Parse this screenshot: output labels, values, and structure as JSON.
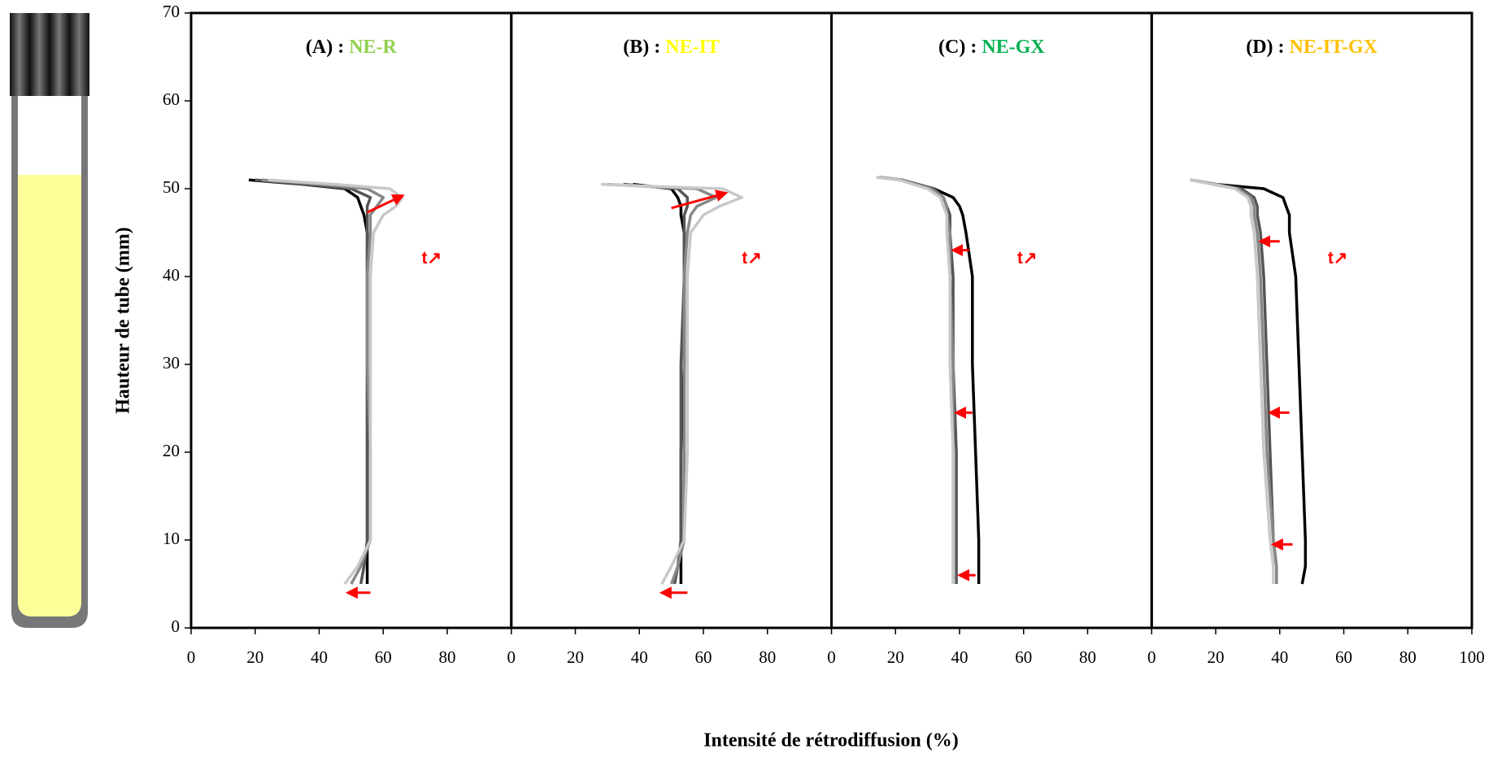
{
  "chart_data": [
    {
      "type": "line",
      "title": "(A) : ",
      "title_name": "NE-R",
      "title_color": "#92d050",
      "annotation": "t↗",
      "ylabel": "Hauteur de tube (mm)",
      "xlabel": "Intensité de rétrodiffusion (%)",
      "xlim": [
        0,
        100
      ],
      "xticks": [
        0,
        20,
        40,
        60,
        80
      ],
      "ylim": [
        0,
        70
      ],
      "yticks": [
        0,
        10,
        20,
        30,
        40,
        50,
        60,
        70
      ],
      "series": [
        {
          "color": "#000000",
          "x": [
            18,
            35,
            48,
            52,
            53,
            54,
            55,
            55,
            55,
            55,
            55,
            55,
            55
          ],
          "values": [
            51,
            50.5,
            50,
            49,
            48,
            47,
            45,
            40,
            30,
            20,
            10,
            7,
            5
          ]
        },
        {
          "color": "#555555",
          "x": [
            20,
            36,
            50,
            56,
            55,
            55,
            55,
            55,
            55,
            55,
            55,
            54,
            53
          ],
          "values": [
            51,
            50.5,
            50,
            49,
            48,
            47,
            45,
            40,
            30,
            20,
            10,
            7,
            5
          ]
        },
        {
          "color": "#888888",
          "x": [
            22,
            40,
            55,
            60,
            58,
            56,
            56,
            55,
            55,
            56,
            56,
            53,
            50
          ],
          "values": [
            51,
            50.5,
            50,
            49,
            48,
            47,
            45,
            40,
            30,
            20,
            10,
            7,
            5
          ]
        },
        {
          "color": "#c8c8c8",
          "x": [
            24,
            45,
            62,
            66,
            64,
            60,
            57,
            56,
            56,
            56,
            56,
            52,
            48
          ],
          "values": [
            51,
            50.5,
            50,
            49,
            48,
            47,
            45,
            40,
            30,
            20,
            10,
            7,
            5
          ]
        }
      ]
    },
    {
      "type": "line",
      "title": "(B) : ",
      "title_name": "NE-IT",
      "title_color": "#ffff00",
      "annotation": "t↗",
      "xlim": [
        0,
        100
      ],
      "xticks": [
        0,
        20,
        40,
        60,
        80
      ],
      "ylim": [
        0,
        70
      ],
      "series": [
        {
          "color": "#000000",
          "x": [
            38,
            45,
            50,
            52,
            53,
            53,
            54,
            54,
            54,
            53,
            53,
            53,
            53
          ],
          "values": [
            50.5,
            50.2,
            50,
            49,
            48,
            47,
            45,
            40,
            30,
            20,
            10,
            7,
            5
          ]
        },
        {
          "color": "#555555",
          "x": [
            35,
            45,
            52,
            55,
            55,
            54,
            54,
            54,
            53,
            53,
            53,
            52,
            51
          ],
          "values": [
            50.5,
            50.2,
            50,
            49,
            48,
            47,
            45,
            40,
            30,
            20,
            10,
            7,
            5
          ]
        },
        {
          "color": "#888888",
          "x": [
            30,
            45,
            58,
            64,
            58,
            56,
            55,
            54,
            54,
            54,
            54,
            52,
            50
          ],
          "values": [
            50.5,
            50.2,
            50,
            49,
            48,
            47,
            45,
            40,
            30,
            20,
            10,
            7,
            5
          ]
        },
        {
          "color": "#c8c8c8",
          "x": [
            28,
            48,
            66,
            72,
            65,
            60,
            56,
            55,
            55,
            55,
            54,
            50,
            47
          ],
          "values": [
            50.5,
            50.2,
            50,
            49,
            48,
            47,
            45,
            40,
            30,
            20,
            10,
            7,
            5
          ]
        }
      ]
    },
    {
      "type": "line",
      "title": "(C) : ",
      "title_name": "NE-GX",
      "title_color": "#00b050",
      "annotation": "t↗",
      "xlim": [
        0,
        100
      ],
      "xticks": [
        0,
        20,
        40,
        60,
        80
      ],
      "ylim": [
        0,
        70
      ],
      "series": [
        {
          "color": "#000000",
          "x": [
            15,
            22,
            32,
            38,
            40,
            41,
            42,
            44,
            44,
            45,
            46,
            46,
            46
          ],
          "values": [
            51.3,
            51,
            50,
            49,
            48,
            47,
            45,
            40,
            30,
            20,
            10,
            7,
            5
          ]
        },
        {
          "color": "#555555",
          "x": [
            15,
            22,
            32,
            35,
            36,
            37,
            37,
            38,
            38,
            39,
            39,
            39,
            39
          ],
          "values": [
            51.3,
            51,
            50,
            49,
            48,
            47,
            45,
            40,
            30,
            20,
            10,
            7,
            5
          ]
        },
        {
          "color": "#888888",
          "x": [
            15,
            22,
            31,
            35,
            36,
            36,
            37,
            37,
            38,
            38,
            38,
            38,
            38
          ],
          "values": [
            51.3,
            51,
            50,
            49,
            48,
            47,
            45,
            40,
            30,
            20,
            10,
            7,
            5
          ]
        },
        {
          "color": "#c8c8c8",
          "x": [
            14,
            21,
            30,
            34,
            35,
            36,
            36,
            37,
            37,
            38,
            38,
            38,
            38
          ],
          "values": [
            51.3,
            51,
            50,
            49,
            48,
            47,
            45,
            40,
            30,
            20,
            10,
            7,
            5
          ]
        }
      ]
    },
    {
      "type": "line",
      "title": "(D) : ",
      "title_name": "NE-IT-GX",
      "title_color": "#ffc000",
      "annotation": "t↗",
      "xlim": [
        0,
        100
      ],
      "xticks": [
        0,
        20,
        40,
        60,
        80,
        100
      ],
      "ylim": [
        0,
        70
      ],
      "series": [
        {
          "color": "#000000",
          "x": [
            12,
            20,
            35,
            41,
            42,
            43,
            43,
            45,
            46,
            47,
            48,
            48,
            47
          ],
          "values": [
            51,
            50.5,
            50,
            49,
            48,
            47,
            45,
            40,
            30,
            20,
            10,
            7,
            5
          ]
        },
        {
          "color": "#555555",
          "x": [
            12,
            20,
            28,
            32,
            33,
            33,
            34,
            35,
            36,
            37,
            38,
            39,
            39
          ],
          "values": [
            51,
            50.5,
            50,
            49,
            48,
            47,
            45,
            40,
            30,
            20,
            10,
            7,
            5
          ]
        },
        {
          "color": "#888888",
          "x": [
            12,
            20,
            27,
            31,
            32,
            32,
            33,
            34,
            35,
            36,
            38,
            39,
            39
          ],
          "values": [
            51,
            50.5,
            50,
            49,
            48,
            47,
            45,
            40,
            30,
            20,
            10,
            7,
            5
          ]
        },
        {
          "color": "#c8c8c8",
          "x": [
            12,
            19,
            26,
            30,
            31,
            31,
            32,
            33,
            34,
            35,
            37,
            38,
            38
          ],
          "values": [
            51,
            50.5,
            50,
            49,
            48,
            47,
            45,
            40,
            30,
            20,
            10,
            7,
            5
          ]
        }
      ]
    }
  ]
}
